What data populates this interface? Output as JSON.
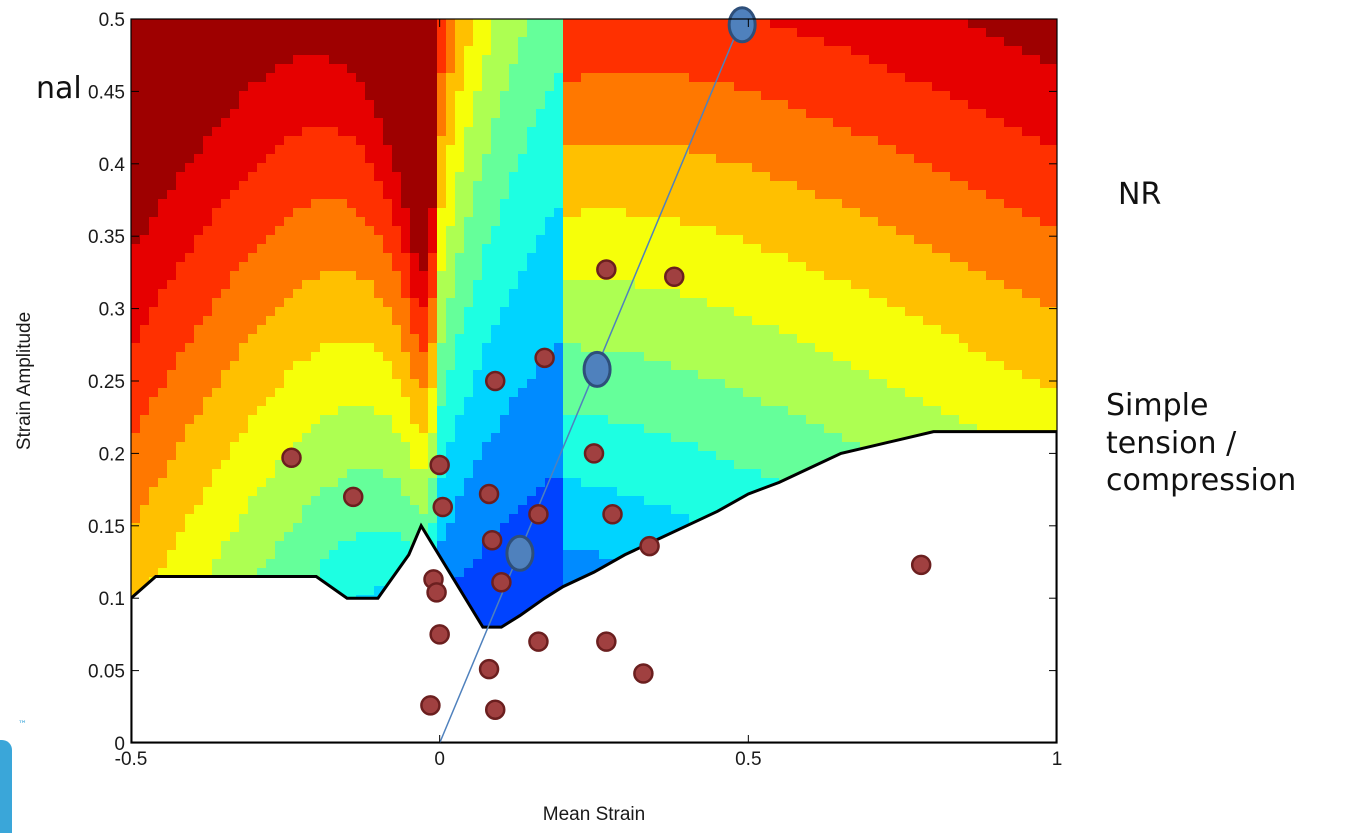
{
  "chart_data": {
    "type": "contour",
    "title": "",
    "xlabel": "Mean Strain",
    "ylabel": "Strain Amplitude",
    "xlim": [
      -0.5,
      1.0
    ],
    "ylim": [
      0,
      0.5
    ],
    "xticks": [
      -0.5,
      0,
      0.5,
      1
    ],
    "xtick_labels": [
      "-0.5",
      "0",
      "0.5",
      "1"
    ],
    "yticks": [
      0,
      0.05,
      0.1,
      0.15,
      0.2,
      0.25,
      0.3,
      0.35,
      0.4,
      0.45,
      0.5
    ],
    "ytick_labels": [
      "0",
      "0.05",
      "0.1",
      "0.15",
      "0.2",
      "0.25",
      "0.3",
      "0.35",
      "0.4",
      "0.45",
      "0.5"
    ],
    "colormap": "jet",
    "contour_levels": 13,
    "grid": false,
    "boundary": {
      "x": [
        -0.5,
        -0.46,
        -0.2,
        -0.15,
        -0.1,
        -0.05,
        -0.03,
        0.07,
        0.1,
        0.13,
        0.17,
        0.2,
        0.25,
        0.3,
        0.35,
        0.4,
        0.45,
        0.5,
        0.55,
        0.6,
        0.65,
        0.7,
        0.75,
        0.8,
        0.85,
        1.0
      ],
      "y": [
        0.1,
        0.115,
        0.115,
        0.1,
        0.1,
        0.13,
        0.15,
        0.08,
        0.08,
        0.088,
        0.1,
        0.108,
        0.118,
        0.13,
        0.14,
        0.15,
        0.16,
        0.172,
        0.18,
        0.19,
        0.2,
        0.205,
        0.21,
        0.215,
        0.215,
        0.215
      ]
    },
    "series": [
      {
        "type": "scatter",
        "color": "#a04040",
        "x": [
          -0.24,
          -0.14,
          0.0,
          0.005,
          -0.01,
          -0.005,
          0.0,
          0.08,
          0.085,
          0.09,
          0.1,
          -0.015,
          0.08,
          0.09,
          0.16,
          0.17,
          0.25,
          0.27,
          0.28,
          0.34,
          0.38,
          0.16,
          0.27,
          0.33,
          0.78
        ],
        "y": [
          0.197,
          0.17,
          0.192,
          0.163,
          0.113,
          0.104,
          0.075,
          0.172,
          0.14,
          0.25,
          0.111,
          0.026,
          0.051,
          0.023,
          0.158,
          0.266,
          0.2,
          0.327,
          0.158,
          0.136,
          0.322,
          0.07,
          0.07,
          0.048,
          0.123
        ]
      },
      {
        "type": "line",
        "color": "#4f81bd",
        "x": [
          0.0,
          0.49
        ],
        "y": [
          0.0,
          0.5
        ]
      },
      {
        "type": "scatter",
        "color": "#4f81bd",
        "x": [
          0.13,
          0.255,
          0.49
        ],
        "y": [
          0.131,
          0.258,
          0.496
        ]
      }
    ]
  },
  "annotations": {
    "nr": "NR",
    "simple": [
      "Simple",
      "tension /",
      "compression"
    ],
    "partial_left": "nal",
    "logo_tm": "™"
  }
}
